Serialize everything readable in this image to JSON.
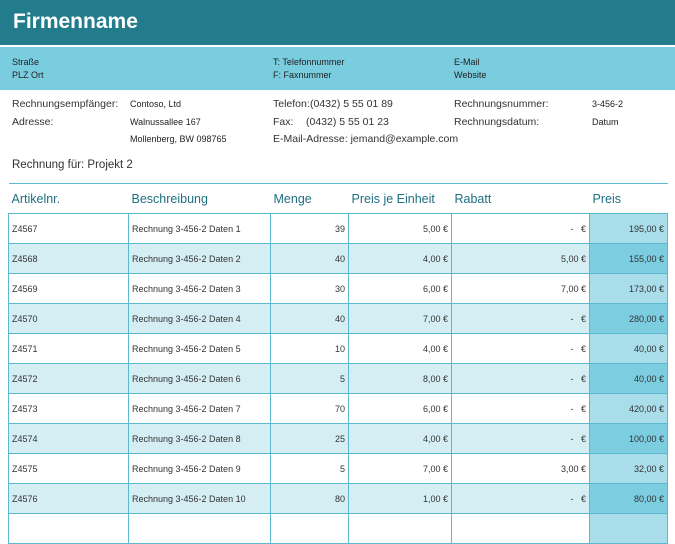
{
  "header": {
    "title": "Firmenname",
    "address": [
      "Straße",
      "PLZ Ort"
    ],
    "contact": [
      "T: Telefonnummer",
      "F: Faxnummer"
    ],
    "web": [
      "E-Mail",
      "Website"
    ]
  },
  "recipient": {
    "label_recipient": "Rechnungsempfänger:",
    "label_address": "Adresse:",
    "name": "Contoso, Ltd",
    "street": "Walnussallee 167",
    "city": "Mollenberg, BW 098765",
    "phone_label": "Telefon:",
    "phone": "(0432) 5 55 01 89",
    "fax_label": "Fax:",
    "fax": "(0432) 5 55 01 23",
    "email": "E-Mail-Adresse: jemand@example.com",
    "invoice_no_label": "Rechnungsnummer:",
    "invoice_no": "3-456-2",
    "invoice_date_label": "Rechnungsdatum:",
    "invoice_date": "Datum"
  },
  "project": "Rechnung für: Projekt 2",
  "table": {
    "columns": [
      "Artikelnr.",
      "Beschreibung",
      "Menge",
      "Preis je Einheit",
      "Rabatt",
      "Preis"
    ],
    "rows": [
      [
        "Z4567",
        "Rechnung 3-456-2 Daten 1",
        39,
        "5,00 €",
        "-   €",
        "195,00 €"
      ],
      [
        "Z4568",
        "Rechnung 3-456-2 Daten 2",
        40,
        "4,00 €",
        "5,00 €",
        "155,00 €"
      ],
      [
        "Z4569",
        "Rechnung 3-456-2 Daten 3",
        30,
        "6,00 €",
        "7,00 €",
        "173,00 €"
      ],
      [
        "Z4570",
        "Rechnung 3-456-2 Daten 4",
        40,
        "7,00 €",
        "-   €",
        "280,00 €"
      ],
      [
        "Z4571",
        "Rechnung 3-456-2 Daten 5",
        10,
        "4,00 €",
        "-   €",
        "40,00 €"
      ],
      [
        "Z4572",
        "Rechnung 3-456-2 Daten 6",
        5,
        "8,00 €",
        "-   €",
        "40,00 €"
      ],
      [
        "Z4573",
        "Rechnung 3-456-2 Daten 7",
        70,
        "6,00 €",
        "-   €",
        "420,00 €"
      ],
      [
        "Z4574",
        "Rechnung 3-456-2 Daten 8",
        25,
        "4,00 €",
        "-   €",
        "100,00 €"
      ],
      [
        "Z4575",
        "Rechnung 3-456-2 Daten 9",
        5,
        "7,00 €",
        "3,00 €",
        "32,00 €"
      ],
      [
        "Z4576",
        "Rechnung 3-456-2 Daten 10",
        80,
        "1,00 €",
        "-   €",
        "80,00 €"
      ]
    ]
  }
}
